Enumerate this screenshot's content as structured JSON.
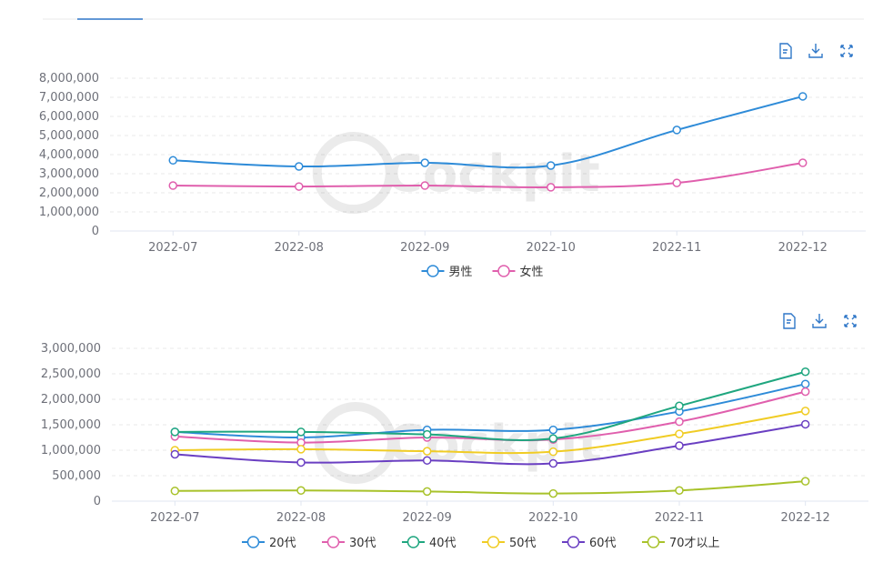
{
  "toolbox": {
    "icons": [
      "data-view-icon",
      "download-icon",
      "fullscreen-icon"
    ],
    "color": "#2f77c8"
  },
  "chart_data": [
    {
      "type": "line",
      "title": "",
      "categories": [
        "2022-07",
        "2022-08",
        "2022-09",
        "2022-10",
        "2022-11",
        "2022-12"
      ],
      "ylim": [
        0,
        8000000
      ],
      "yticks": [
        "0",
        "1,000,000",
        "2,000,000",
        "3,000,000",
        "4,000,000",
        "5,000,000",
        "6,000,000",
        "7,000,000",
        "8,000,000"
      ],
      "grid": true,
      "legend": "bottom-center",
      "series": [
        {
          "name": "男性",
          "color": "#2e8bd8",
          "values": [
            3700000,
            3380000,
            3570000,
            3430000,
            5290000,
            7050000
          ]
        },
        {
          "name": "女性",
          "color": "#e05fad",
          "values": [
            2380000,
            2330000,
            2380000,
            2290000,
            2520000,
            3570000
          ]
        }
      ]
    },
    {
      "type": "line",
      "title": "",
      "categories": [
        "2022-07",
        "2022-08",
        "2022-09",
        "2022-10",
        "2022-11",
        "2022-12"
      ],
      "ylim": [
        0,
        3000000
      ],
      "yticks": [
        "0",
        "500,000",
        "1,000,000",
        "1,500,000",
        "2,000,000",
        "2,500,000",
        "3,000,000"
      ],
      "grid": true,
      "legend": "bottom-center",
      "series": [
        {
          "name": "20代",
          "color": "#2e8bd8",
          "values": [
            1360000,
            1250000,
            1400000,
            1400000,
            1760000,
            2300000
          ]
        },
        {
          "name": "30代",
          "color": "#e05fad",
          "values": [
            1270000,
            1150000,
            1250000,
            1210000,
            1560000,
            2150000
          ]
        },
        {
          "name": "40代",
          "color": "#1fa67f",
          "values": [
            1360000,
            1360000,
            1310000,
            1230000,
            1870000,
            2540000
          ]
        },
        {
          "name": "50代",
          "color": "#f0cc24",
          "values": [
            1000000,
            1020000,
            980000,
            970000,
            1320000,
            1770000
          ]
        },
        {
          "name": "60代",
          "color": "#6a3fc2",
          "values": [
            920000,
            760000,
            800000,
            740000,
            1090000,
            1510000
          ]
        },
        {
          "name": "70才以上",
          "color": "#a8c22a",
          "values": [
            200000,
            210000,
            190000,
            150000,
            210000,
            390000
          ]
        }
      ]
    }
  ]
}
